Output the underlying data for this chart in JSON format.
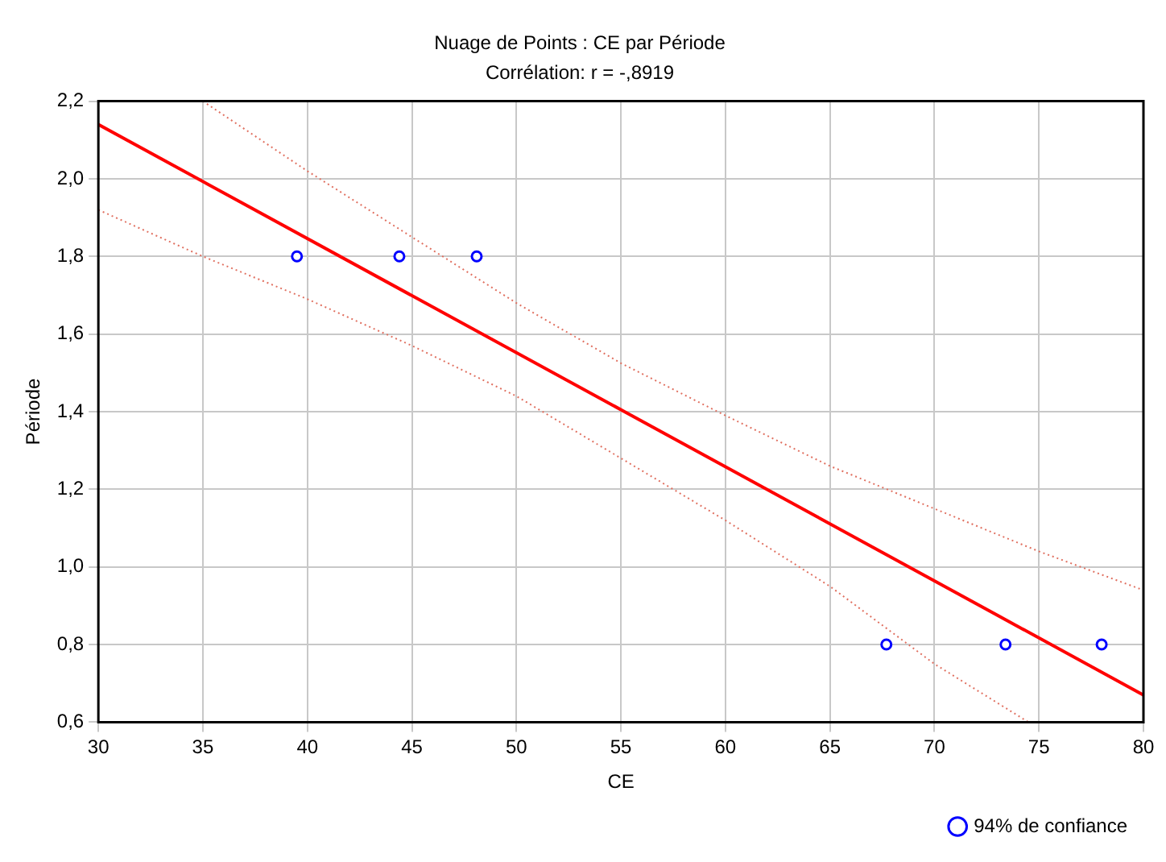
{
  "chart_data": {
    "type": "scatter",
    "title": "Nuage de Points : CE par Période",
    "subtitle": "Corrélation: r = -,8919",
    "xlabel": "CE",
    "ylabel": "Période",
    "series": [
      {
        "name": "94% de confiance",
        "color": "#0000ff",
        "marker": "circle",
        "x": [
          39.5,
          44.4,
          48.1,
          67.7,
          73.4,
          78.0
        ],
        "values": [
          1.8,
          1.8,
          1.8,
          0.8,
          0.8,
          0.8
        ]
      },
      {
        "type": "line",
        "color": "#ff0000",
        "line_style": "solid",
        "marker": "none",
        "x": [
          30,
          80
        ],
        "values": [
          2.14,
          0.67
        ]
      },
      {
        "type": "line",
        "color": "#e07060",
        "line_style": "dotted",
        "marker": "none",
        "x": [
          35,
          40,
          45,
          50,
          55,
          60,
          65,
          70,
          75,
          80
        ],
        "values": [
          2.2,
          2.02,
          1.85,
          1.68,
          1.525,
          1.39,
          1.26,
          1.15,
          1.04,
          0.94
        ]
      },
      {
        "type": "line",
        "color": "#e07060",
        "line_style": "dotted",
        "marker": "none",
        "x": [
          30,
          35,
          40,
          45,
          50,
          55,
          60,
          65,
          70,
          74.5
        ],
        "values": [
          1.92,
          1.8,
          1.69,
          1.57,
          1.44,
          1.28,
          1.12,
          0.95,
          0.75,
          0.6
        ]
      }
    ],
    "xlim": [
      30,
      80
    ],
    "xticks": [
      30,
      35,
      40,
      45,
      50,
      55,
      60,
      65,
      70,
      75,
      80
    ],
    "ylim": [
      0.6,
      2.2
    ],
    "yticks": [
      {
        "value": 0.6,
        "label": "0,6"
      },
      {
        "value": 0.8,
        "label": "0,8"
      },
      {
        "value": 1.0,
        "label": "1,0"
      },
      {
        "value": 1.2,
        "label": "1,2"
      },
      {
        "value": 1.4,
        "label": "1,4"
      },
      {
        "value": 1.6,
        "label": "1,6"
      },
      {
        "value": 1.8,
        "label": "1,8"
      },
      {
        "value": 2.0,
        "label": "2,0"
      },
      {
        "value": 2.2,
        "label": "2,2"
      }
    ],
    "grid": true,
    "legend": "bottom right"
  }
}
